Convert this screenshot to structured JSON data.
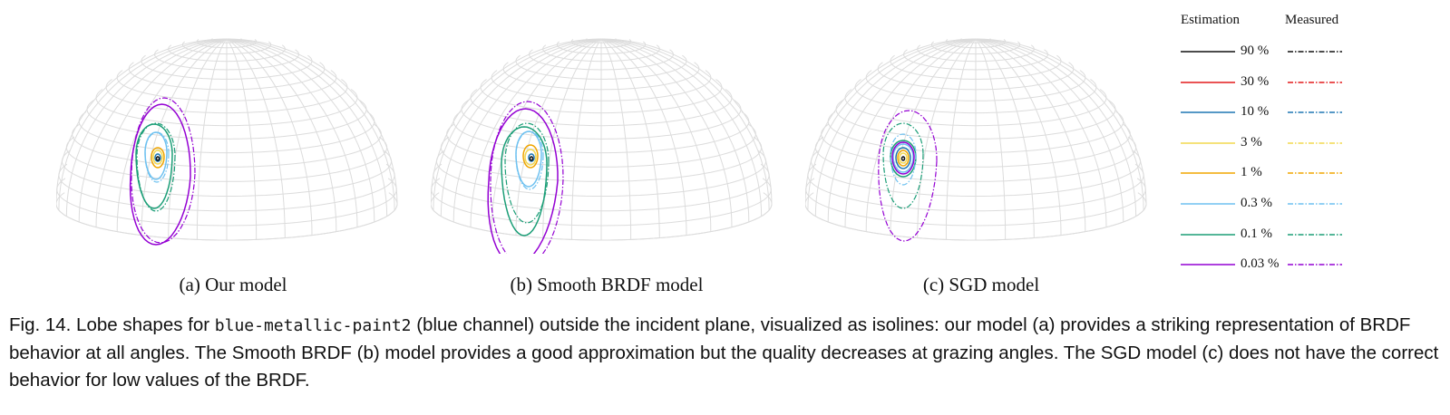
{
  "subcaptions": [
    "(a) Our model",
    "(b) Smooth BRDF model",
    "(c) SGD model"
  ],
  "legend": {
    "header_estimation": "Estimation",
    "header_measured": "Measured",
    "entries": [
      {
        "label": "90 %",
        "color": "#111111"
      },
      {
        "label": "30 %",
        "color": "#e41a1c"
      },
      {
        "label": "10 %",
        "color": "#1f77b4"
      },
      {
        "label": "3 %",
        "color": "#f2d94e"
      },
      {
        "label": "1 %",
        "color": "#f0a500"
      },
      {
        "label": "0.3 %",
        "color": "#6ec1f0"
      },
      {
        "label": "0.1 %",
        "color": "#1b9e77"
      },
      {
        "label": "0.03 %",
        "color": "#9400d3"
      }
    ]
  },
  "caption": {
    "prefix": "Fig. 14.  Lobe shapes for ",
    "material": "blue-metallic-paint2",
    "rest": " (blue channel) outside the incident plane, visualized as isolines: our model (a) provides a striking representation of BRDF behavior at all angles. The Smooth BRDF (b) model provides a good approximation but the quality decreases at grazing angles. The SGD model (c) does not have the correct behavior for low values of the BRDF."
  },
  "colors": {
    "grid": "#dcdcdc"
  }
}
